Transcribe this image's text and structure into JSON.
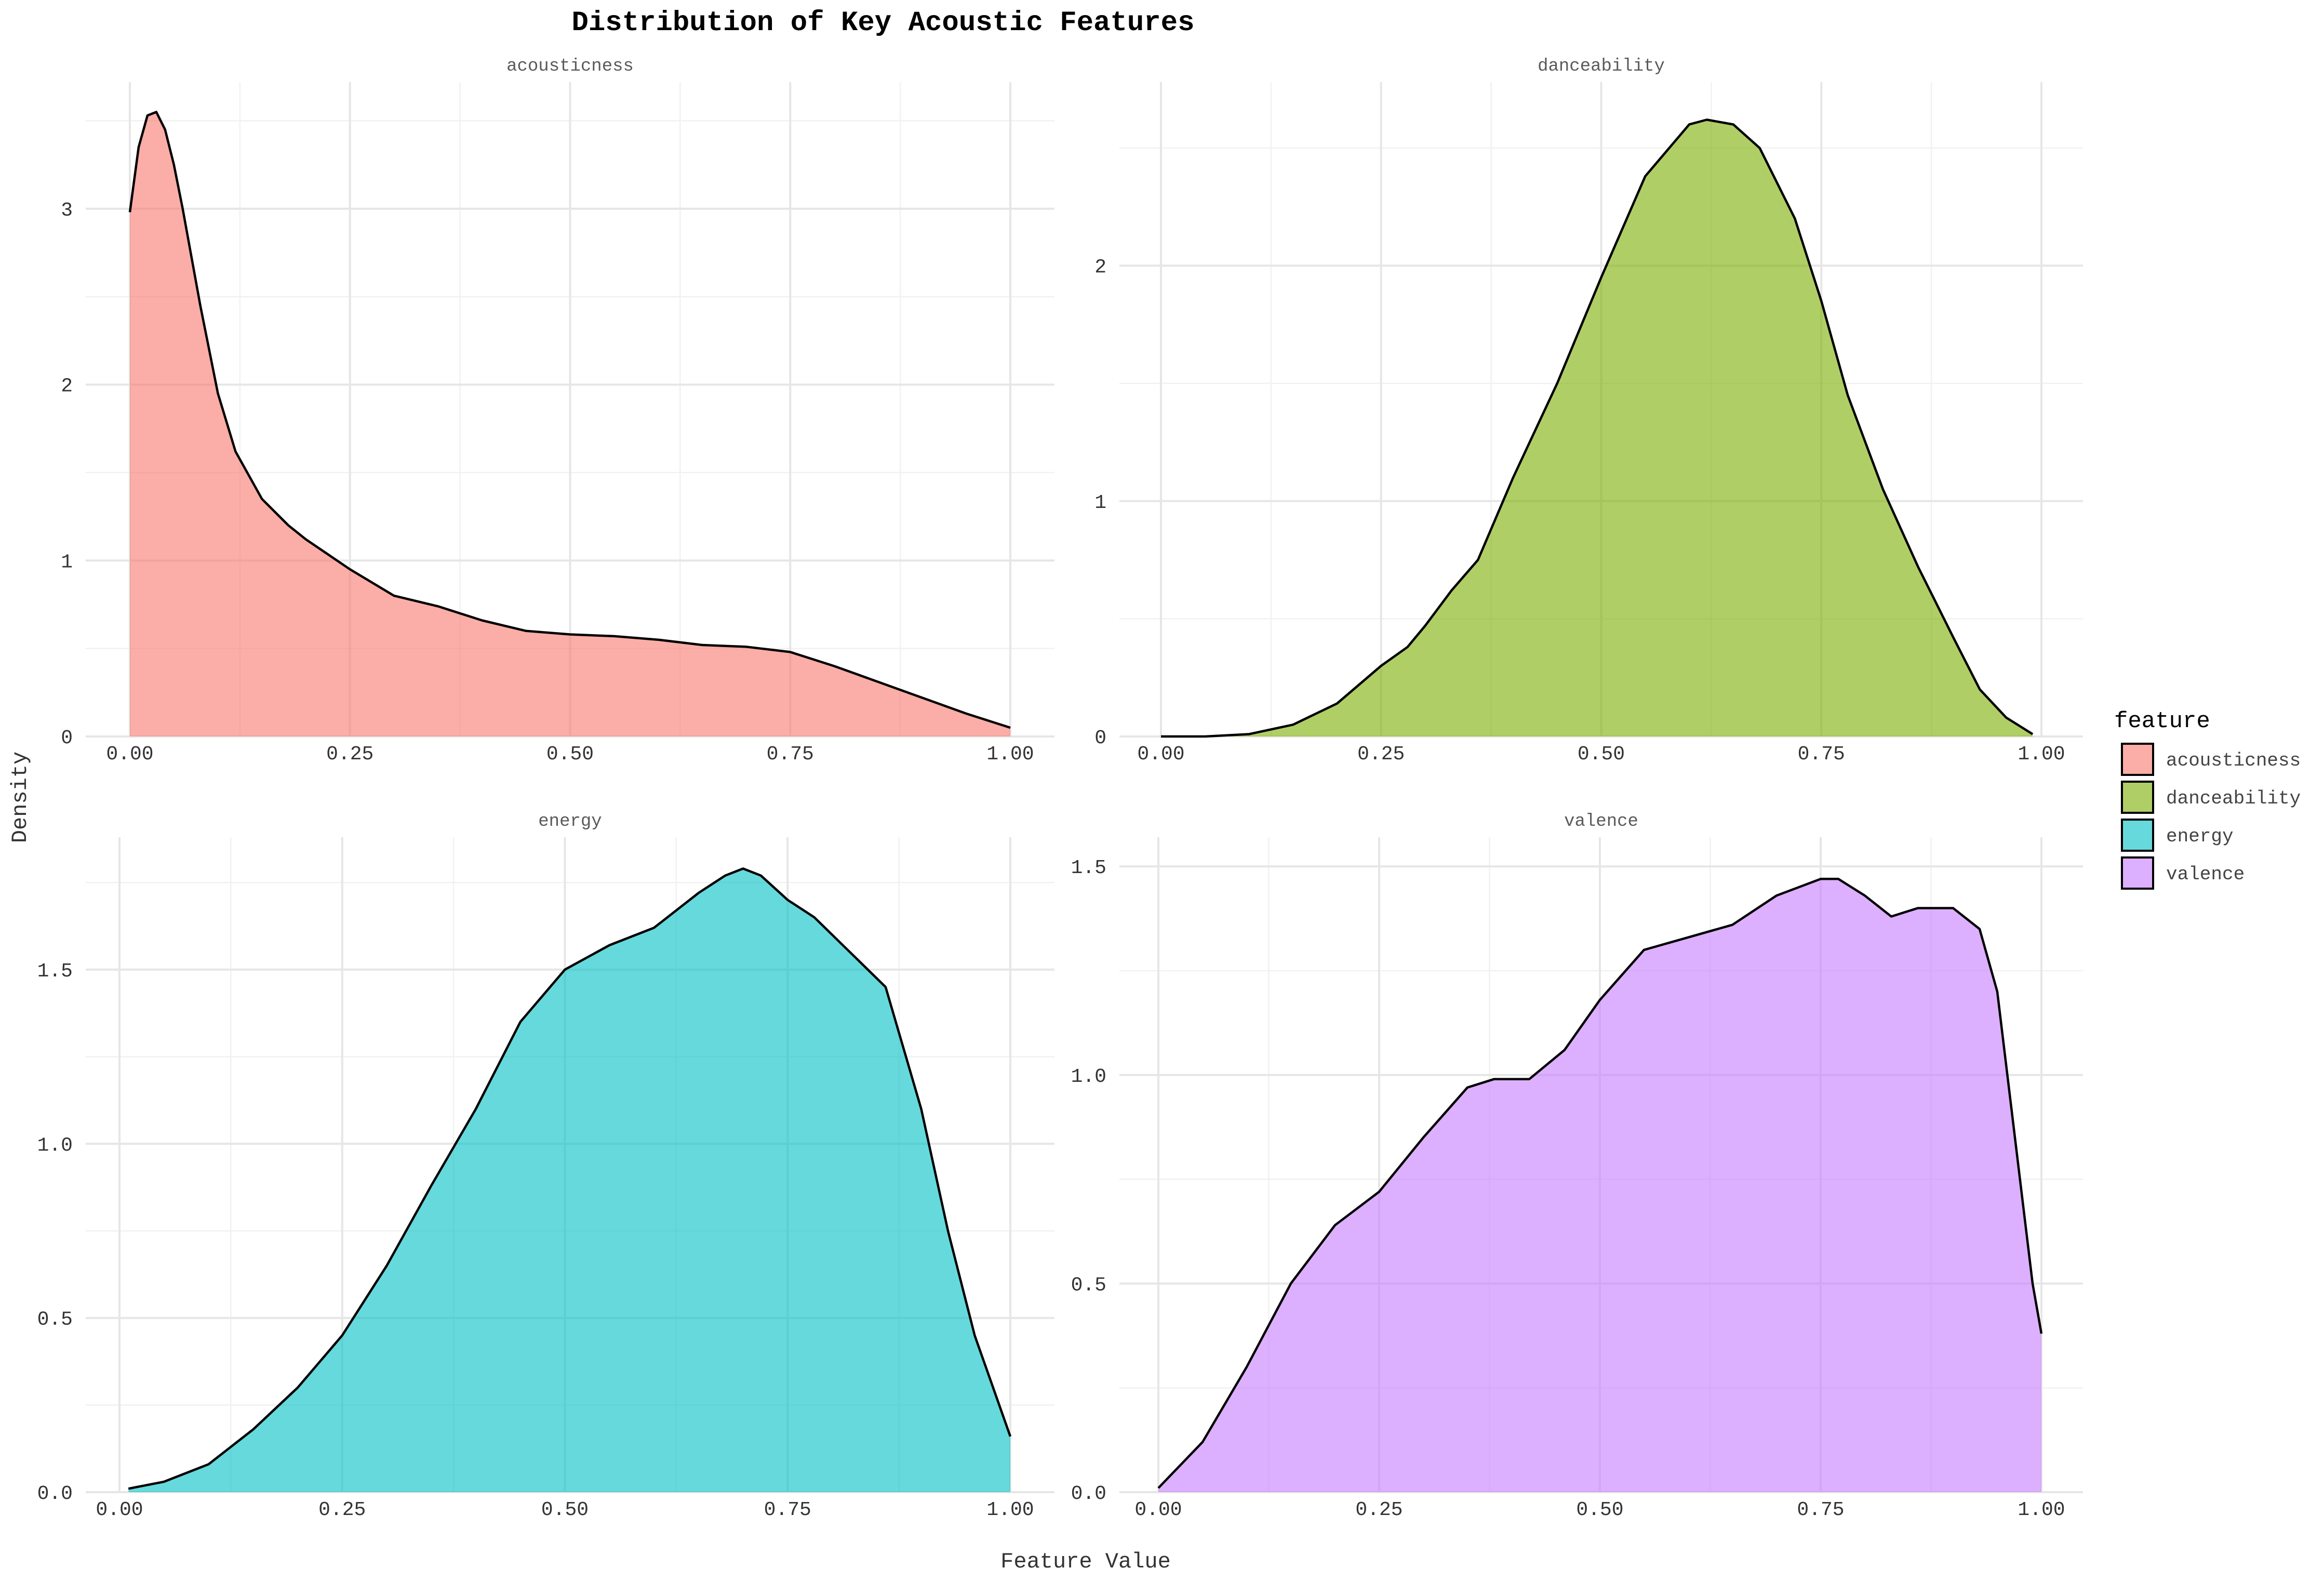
{
  "chart_data": {
    "type": "area",
    "title": "Distribution of Key Acoustic Features",
    "xlabel": "Feature Value",
    "ylabel": "Density",
    "legend": {
      "title": "feature",
      "position": "right"
    },
    "grid": true,
    "panels": [
      {
        "name": "acousticness",
        "color": "#F8766D",
        "xlim": [
          0,
          1
        ],
        "ylim": [
          0,
          3.72
        ],
        "x_ticks": [
          "0.00",
          "0.25",
          "0.50",
          "0.75",
          "1.00"
        ],
        "x_tick_values": [
          0,
          0.25,
          0.5,
          0.75,
          1.0
        ],
        "y_ticks": [
          "0",
          "1",
          "2",
          "3"
        ],
        "y_tick_values": [
          0,
          1,
          2,
          3
        ],
        "x": [
          0.0,
          0.01,
          0.02,
          0.03,
          0.04,
          0.05,
          0.06,
          0.08,
          0.1,
          0.12,
          0.15,
          0.18,
          0.2,
          0.25,
          0.3,
          0.35,
          0.4,
          0.45,
          0.5,
          0.55,
          0.6,
          0.65,
          0.7,
          0.75,
          0.8,
          0.85,
          0.9,
          0.95,
          1.0
        ],
        "y": [
          2.98,
          3.35,
          3.53,
          3.55,
          3.45,
          3.25,
          3.0,
          2.45,
          1.95,
          1.62,
          1.35,
          1.2,
          1.12,
          0.95,
          0.8,
          0.74,
          0.66,
          0.6,
          0.58,
          0.57,
          0.55,
          0.52,
          0.51,
          0.48,
          0.4,
          0.31,
          0.22,
          0.13,
          0.05
        ]
      },
      {
        "name": "danceability",
        "color": "#7CAE00",
        "xlim": [
          0,
          1
        ],
        "ylim": [
          0,
          2.78
        ],
        "x_ticks": [
          "0.00",
          "0.25",
          "0.50",
          "0.75",
          "1.00"
        ],
        "x_tick_values": [
          0,
          0.25,
          0.5,
          0.75,
          1.0
        ],
        "y_ticks": [
          "0",
          "1",
          "2"
        ],
        "y_tick_values": [
          0,
          1,
          2
        ],
        "x": [
          0.0,
          0.05,
          0.1,
          0.15,
          0.2,
          0.25,
          0.28,
          0.3,
          0.33,
          0.36,
          0.4,
          0.45,
          0.5,
          0.55,
          0.6,
          0.62,
          0.65,
          0.68,
          0.72,
          0.75,
          0.78,
          0.82,
          0.86,
          0.9,
          0.93,
          0.96,
          0.99
        ],
        "y": [
          0.0,
          0.0,
          0.01,
          0.05,
          0.14,
          0.3,
          0.38,
          0.47,
          0.62,
          0.75,
          1.1,
          1.5,
          1.95,
          2.38,
          2.6,
          2.62,
          2.6,
          2.5,
          2.2,
          1.85,
          1.45,
          1.05,
          0.72,
          0.42,
          0.2,
          0.08,
          0.01
        ]
      },
      {
        "name": "energy",
        "color": "#00BFC4",
        "xlim": [
          0,
          1
        ],
        "ylim": [
          0,
          1.88
        ],
        "x_ticks": [
          "0.00",
          "0.25",
          "0.50",
          "0.75",
          "1.00"
        ],
        "x_tick_values": [
          0,
          0.25,
          0.5,
          0.75,
          1.0
        ],
        "y_ticks": [
          "0.0",
          "0.5",
          "1.0",
          "1.5"
        ],
        "y_tick_values": [
          0,
          0.5,
          1.0,
          1.5
        ],
        "x": [
          0.01,
          0.05,
          0.1,
          0.15,
          0.2,
          0.25,
          0.3,
          0.35,
          0.4,
          0.45,
          0.5,
          0.55,
          0.6,
          0.65,
          0.68,
          0.7,
          0.72,
          0.75,
          0.78,
          0.82,
          0.86,
          0.9,
          0.93,
          0.96,
          1.0
        ],
        "y": [
          0.01,
          0.03,
          0.08,
          0.18,
          0.3,
          0.45,
          0.65,
          0.88,
          1.1,
          1.35,
          1.5,
          1.57,
          1.62,
          1.72,
          1.77,
          1.79,
          1.77,
          1.7,
          1.65,
          1.55,
          1.45,
          1.1,
          0.75,
          0.45,
          0.16
        ]
      },
      {
        "name": "valence",
        "color": "#C77CFF",
        "xlim": [
          0,
          1
        ],
        "ylim": [
          0,
          1.57
        ],
        "x_ticks": [
          "0.00",
          "0.25",
          "0.50",
          "0.75",
          "1.00"
        ],
        "x_tick_values": [
          0,
          0.25,
          0.5,
          0.75,
          1.0
        ],
        "y_ticks": [
          "0.0",
          "0.5",
          "1.0",
          "1.5"
        ],
        "y_tick_values": [
          0,
          0.5,
          1.0,
          1.5
        ],
        "x": [
          0.0,
          0.05,
          0.1,
          0.15,
          0.2,
          0.25,
          0.3,
          0.35,
          0.38,
          0.42,
          0.46,
          0.5,
          0.55,
          0.6,
          0.65,
          0.7,
          0.75,
          0.77,
          0.8,
          0.83,
          0.86,
          0.9,
          0.93,
          0.95,
          0.97,
          0.99,
          1.0
        ],
        "y": [
          0.01,
          0.12,
          0.3,
          0.5,
          0.64,
          0.72,
          0.85,
          0.97,
          0.99,
          0.99,
          1.06,
          1.18,
          1.3,
          1.33,
          1.36,
          1.43,
          1.47,
          1.47,
          1.43,
          1.38,
          1.4,
          1.4,
          1.35,
          1.2,
          0.85,
          0.5,
          0.38
        ]
      }
    ]
  }
}
